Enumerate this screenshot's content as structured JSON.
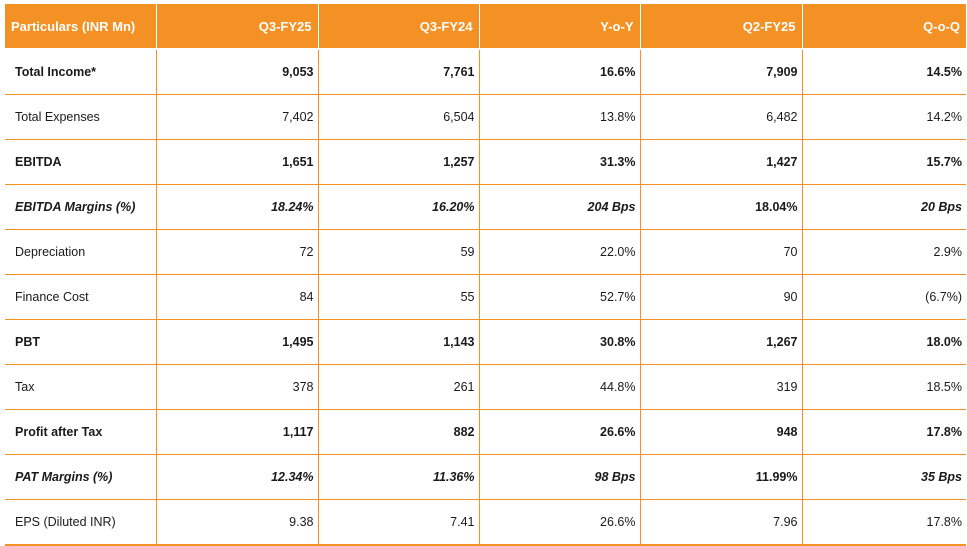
{
  "header": [
    "Particulars (INR Mn)",
    "Q3-FY25",
    "Q3-FY24",
    "Y-o-Y",
    "Q2-FY25",
    "Q-o-Q"
  ],
  "rows": [
    {
      "style": "bold",
      "cells": [
        "Total Income*",
        "9,053",
        "7,761",
        "16.6%",
        "7,909",
        "14.5%"
      ]
    },
    {
      "style": "normal",
      "cells": [
        "Total Expenses",
        "7,402",
        "6,504",
        "13.8%",
        "6,482",
        "14.2%"
      ]
    },
    {
      "style": "bold",
      "cells": [
        "EBITDA",
        "1,651",
        "1,257",
        "31.3%",
        "1,427",
        "15.7%"
      ]
    },
    {
      "style": "italic",
      "cells": [
        "EBITDA Margins (%)",
        "18.24%",
        "16.20%",
        "204 Bps",
        "18.04%",
        "20 Bps"
      ],
      "normal_cols": [
        4
      ]
    },
    {
      "style": "normal",
      "cells": [
        "Depreciation",
        "72",
        "59",
        "22.0%",
        "70",
        "2.9%"
      ]
    },
    {
      "style": "normal",
      "cells": [
        "Finance Cost",
        "84",
        "55",
        "52.7%",
        "90",
        "(6.7%)"
      ]
    },
    {
      "style": "bold",
      "cells": [
        "PBT",
        "1,495",
        "1,143",
        "30.8%",
        "1,267",
        "18.0%"
      ]
    },
    {
      "style": "normal",
      "cells": [
        "Tax",
        "378",
        "261",
        "44.8%",
        "319",
        "18.5%"
      ]
    },
    {
      "style": "bold",
      "cells": [
        "Profit after Tax",
        "1,117",
        "882",
        "26.6%",
        "948",
        "17.8%"
      ]
    },
    {
      "style": "italic",
      "cells": [
        "PAT Margins (%)",
        "12.34%",
        "11.36%",
        "98 Bps",
        "11.99%",
        "35 Bps"
      ],
      "normal_cols": [
        4
      ]
    },
    {
      "style": "normal",
      "cells": [
        "EPS (Diluted INR)",
        "9.38",
        "7.41",
        "26.6%",
        "7.96",
        "17.8%"
      ]
    }
  ],
  "colors": {
    "header_bg": "#f39125",
    "header_text": "#ffffff",
    "rule": "#f39125"
  }
}
